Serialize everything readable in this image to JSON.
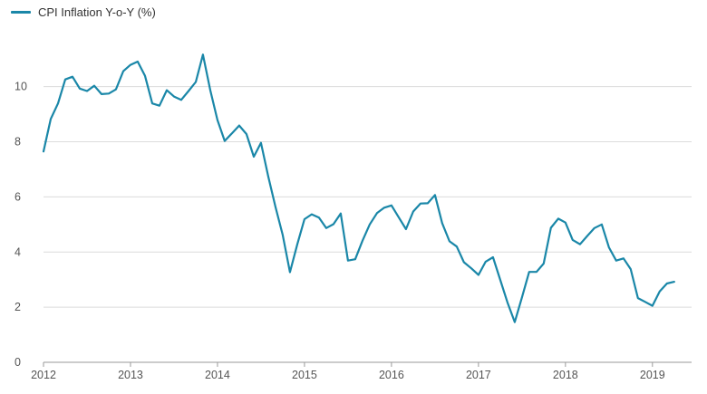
{
  "chart_data": {
    "type": "line",
    "title": "",
    "xlabel": "",
    "ylabel": "",
    "ylim": [
      0,
      11.5
    ],
    "yticks": [
      0,
      2,
      4,
      6,
      8,
      10
    ],
    "xlim": [
      2012,
      2019.45
    ],
    "xticks": [
      2012,
      2013,
      2014,
      2015,
      2016,
      2017,
      2018,
      2019
    ],
    "grid": true,
    "legend_position": "top-left",
    "color": "#1a87a8",
    "series": [
      {
        "name": "CPI Inflation Y-o-Y (%)",
        "x": [
          2012.0,
          2012.083,
          2012.167,
          2012.25,
          2012.333,
          2012.417,
          2012.5,
          2012.583,
          2012.667,
          2012.75,
          2012.833,
          2012.917,
          2013.0,
          2013.083,
          2013.167,
          2013.25,
          2013.333,
          2013.417,
          2013.5,
          2013.583,
          2013.667,
          2013.75,
          2013.833,
          2013.917,
          2014.0,
          2014.083,
          2014.167,
          2014.25,
          2014.333,
          2014.417,
          2014.5,
          2014.583,
          2014.667,
          2014.75,
          2014.833,
          2014.917,
          2015.0,
          2015.083,
          2015.167,
          2015.25,
          2015.333,
          2015.417,
          2015.5,
          2015.583,
          2015.667,
          2015.75,
          2015.833,
          2015.917,
          2016.0,
          2016.083,
          2016.167,
          2016.25,
          2016.333,
          2016.417,
          2016.5,
          2016.583,
          2016.667,
          2016.75,
          2016.833,
          2016.917,
          2017.0,
          2017.083,
          2017.167,
          2017.25,
          2017.333,
          2017.417,
          2017.5,
          2017.583,
          2017.667,
          2017.75,
          2017.833,
          2017.917,
          2018.0,
          2018.083,
          2018.167,
          2018.25,
          2018.333,
          2018.417,
          2018.5,
          2018.583,
          2018.667,
          2018.75,
          2018.833,
          2018.917,
          2019.0,
          2019.083,
          2019.167,
          2019.25
        ],
        "values": [
          7.65,
          8.83,
          9.39,
          10.26,
          10.36,
          9.93,
          9.84,
          10.03,
          9.73,
          9.75,
          9.9,
          10.56,
          10.79,
          10.91,
          10.39,
          9.39,
          9.31,
          9.87,
          9.64,
          9.52,
          9.84,
          10.17,
          11.16,
          9.87,
          8.79,
          8.03,
          8.31,
          8.59,
          8.28,
          7.46,
          7.96,
          6.75,
          5.63,
          4.62,
          3.27,
          4.28,
          5.19,
          5.37,
          5.25,
          4.87,
          5.01,
          5.4,
          3.69,
          3.74,
          4.41,
          5.0,
          5.41,
          5.61,
          5.69,
          5.26,
          4.83,
          5.47,
          5.76,
          5.77,
          6.07,
          5.05,
          4.39,
          4.2,
          3.63,
          3.41,
          3.17,
          3.65,
          3.81,
          2.99,
          2.18,
          1.46,
          2.36,
          3.28,
          3.28,
          3.58,
          4.88,
          5.21,
          5.07,
          4.44,
          4.28,
          4.58,
          4.87,
          5.0,
          4.17,
          3.69,
          3.77,
          3.38,
          2.33,
          2.19,
          2.05,
          2.57,
          2.86,
          2.92
        ]
      }
    ]
  }
}
